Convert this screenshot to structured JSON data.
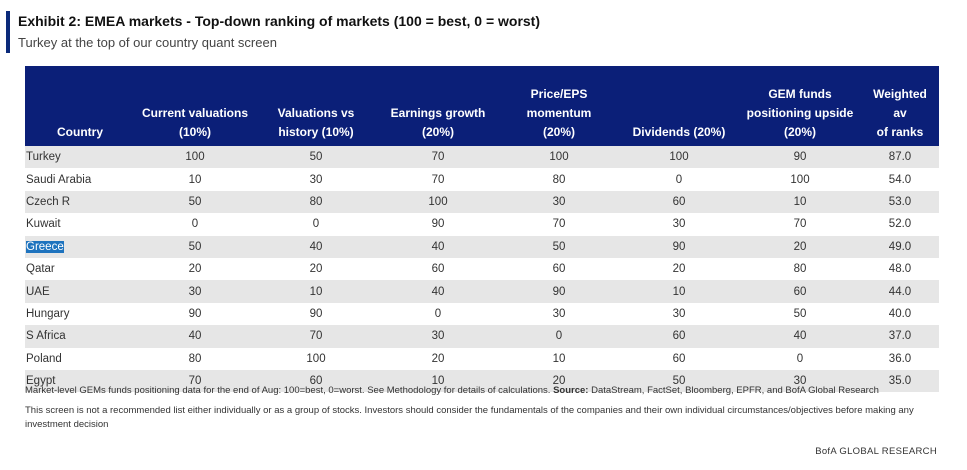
{
  "header": {
    "title": "Exhibit 2: EMEA markets - Top-down ranking of markets (100 = best, 0 = worst)",
    "subtitle": "Turkey at the top of our country quant screen"
  },
  "table": {
    "columns": [
      {
        "line1": "",
        "line2": "",
        "line3": "Country"
      },
      {
        "line1": "",
        "line2": "Current valuations",
        "line3": "(10%)"
      },
      {
        "line1": "",
        "line2": "Valuations vs",
        "line3": "history (10%)"
      },
      {
        "line1": "",
        "line2": "Earnings growth",
        "line3": "(20%)"
      },
      {
        "line1": "Price/EPS",
        "line2": "momentum",
        "line3": "(20%)"
      },
      {
        "line1": "",
        "line2": "",
        "line3": "Dividends (20%)"
      },
      {
        "line1": "GEM funds",
        "line2": "positioning upside",
        "line3": "(20%)"
      },
      {
        "line1": "",
        "line2": "Weighted av",
        "line3": "of ranks"
      }
    ],
    "rows": [
      [
        "Turkey",
        "100",
        "50",
        "70",
        "100",
        "100",
        "90",
        "87.0"
      ],
      [
        "Saudi Arabia",
        "10",
        "30",
        "70",
        "80",
        "0",
        "100",
        "54.0"
      ],
      [
        "Czech R",
        "50",
        "80",
        "100",
        "30",
        "60",
        "10",
        "53.0"
      ],
      [
        "Kuwait",
        "0",
        "0",
        "90",
        "70",
        "30",
        "70",
        "52.0"
      ],
      [
        "Greece",
        "50",
        "40",
        "40",
        "50",
        "90",
        "20",
        "49.0"
      ],
      [
        "Qatar",
        "20",
        "20",
        "60",
        "60",
        "20",
        "80",
        "48.0"
      ],
      [
        "UAE",
        "30",
        "10",
        "40",
        "90",
        "10",
        "60",
        "44.0"
      ],
      [
        "Hungary",
        "90",
        "90",
        "0",
        "30",
        "30",
        "50",
        "40.0"
      ],
      [
        "S Africa",
        "40",
        "70",
        "30",
        "0",
        "60",
        "40",
        "37.0"
      ],
      [
        "Poland",
        "80",
        "100",
        "20",
        "10",
        "60",
        "0",
        "36.0"
      ],
      [
        "Egypt",
        "70",
        "60",
        "10",
        "20",
        "50",
        "30",
        "35.0"
      ]
    ]
  },
  "footnotes": {
    "note1_text": "Market-level GEMs funds positioning data for the end of Aug: 100=best, 0=worst. See Methodology for details of calculations.",
    "source_label": "Source:",
    "source_text": "DataStream, FactSet, Bloomberg, EPFR, and BofA Global Research",
    "note2": "This screen is not a recommended list either individually or as a group of stocks. Investors should consider the fundamentals of the companies and their own individual circumstances/objectives before making any investment decision"
  },
  "brand": "BofA GLOBAL RESEARCH",
  "colors": {
    "header_bg": "#0b1f78",
    "accent": "#0b2a7a",
    "row_shade": "#e6e6e6",
    "selection": "#1e73be"
  }
}
